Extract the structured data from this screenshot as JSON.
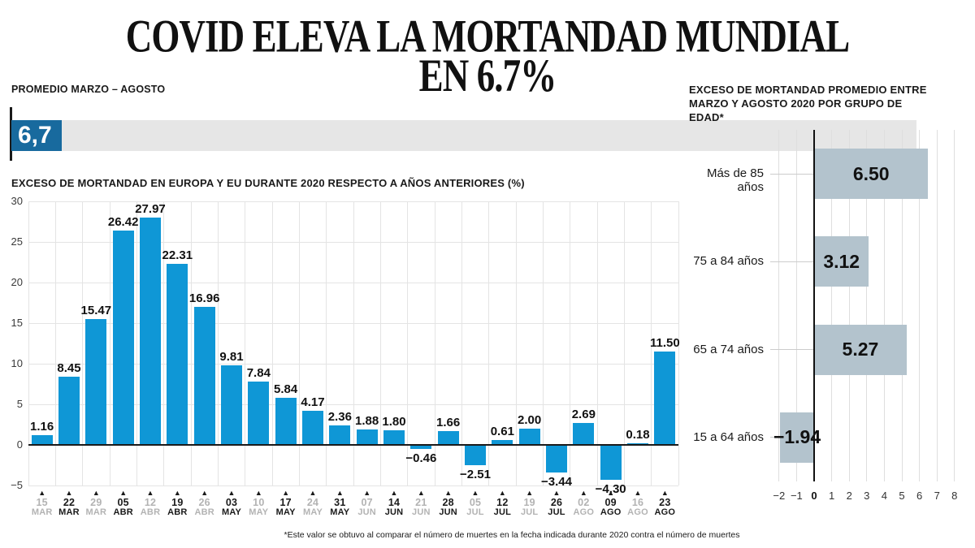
{
  "header": {
    "title_line1": "COVID ELEVA LA MORTANDAD MUNDIAL",
    "title_line2": "EN 6.7%"
  },
  "summary": {
    "label": "PROMEDIO MARZO – AGOSTO",
    "value": "6,7"
  },
  "footnote": "*Este valor se obtuvo al comparar el número de muertes en la fecha indicada durante 2020 contra el número de muertes",
  "colors": {
    "bar_blue": "#0f97d6",
    "badge_blue": "#186a9e",
    "age_bar": "#b3c3cd",
    "track_gray": "#e6e6e6",
    "grid": "#e4e4e4",
    "grid_age": "#dedede",
    "muted_label": "#b3b3b3",
    "ink": "#1a1a1a"
  },
  "chart_data": [
    {
      "type": "bar",
      "title": "EXCESO DE MORTANDAD EN EUROPA Y EU DURANTE 2020 RESPECTO A AÑOS ANTERIORES (%)",
      "categories": [
        "15 MAR",
        "22 MAR",
        "29 MAR",
        "05 ABR",
        "12 ABR",
        "19 ABR",
        "26 ABR",
        "03 MAY",
        "10 MAY",
        "17 MAY",
        "24 MAY",
        "31 MAY",
        "07 JUN",
        "14 JUN",
        "21 JUN",
        "28 JUN",
        "05 JUL",
        "12 JUL",
        "19 JUL",
        "26 JUL",
        "02 AGO",
        "09 AGO",
        "16 AGO",
        "23 AGO"
      ],
      "values": [
        1.16,
        8.45,
        15.47,
        26.42,
        27.97,
        22.31,
        16.96,
        9.81,
        7.84,
        5.84,
        4.17,
        2.36,
        1.88,
        1.8,
        -0.46,
        1.66,
        -2.51,
        0.61,
        2.0,
        -3.44,
        2.69,
        -4.3,
        0.18,
        11.5
      ],
      "value_labels": [
        "1.16",
        "8.45",
        "15.47",
        "26.42",
        "27.97",
        "22.31",
        "16.96",
        "9.81",
        "7.84",
        "5.84",
        "4.17",
        "2.36",
        "1.88",
        "1.80",
        "−0.46",
        "1.66",
        "−2.51",
        "0.61",
        "2.00",
        "−3.44",
        "2.69",
        "−4.30",
        "0.18",
        "11.50"
      ],
      "yticks": [
        30,
        25,
        20,
        15,
        10,
        5,
        0,
        -5
      ],
      "ylim": [
        -5,
        30
      ],
      "xlabel": "",
      "ylabel": "%",
      "grid": true,
      "legend": "none"
    },
    {
      "type": "bar-horizontal",
      "title": "EXCESO DE MORTANDAD PROMEDIO ENTRE MARZO Y AGOSTO 2020 POR GRUPO DE EDAD*",
      "categories": [
        "Más de 85 años",
        "75 a 84 años",
        "65 a 74 años",
        "15 a 64 años"
      ],
      "values": [
        6.5,
        3.12,
        5.27,
        -1.94
      ],
      "value_labels": [
        "6.50",
        "3.12",
        "5.27",
        "−1.94"
      ],
      "xticks": [
        -2,
        -1,
        0,
        1,
        2,
        3,
        4,
        5,
        6,
        7,
        8
      ],
      "xlim": [
        -2,
        8
      ],
      "xlabel": "",
      "ylabel": "",
      "grid": true,
      "legend": "none"
    }
  ]
}
